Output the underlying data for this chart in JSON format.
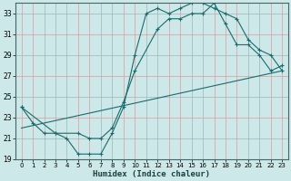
{
  "xlabel": "Humidex (Indice chaleur)",
  "bg_color": "#cde8e8",
  "grid_color": "#b0c8c8",
  "line_color": "#1a6b6b",
  "xlim": [
    -0.5,
    23.5
  ],
  "ylim": [
    19,
    34
  ],
  "xticks": [
    0,
    1,
    2,
    3,
    4,
    5,
    6,
    7,
    8,
    9,
    10,
    11,
    12,
    13,
    14,
    15,
    16,
    17,
    18,
    19,
    20,
    21,
    22,
    23
  ],
  "yticks": [
    19,
    21,
    23,
    25,
    27,
    29,
    31,
    33
  ],
  "curve1_x": [
    0,
    1,
    2,
    3,
    4,
    5,
    6,
    7,
    8,
    9,
    10,
    11,
    12,
    13,
    14,
    15,
    16,
    17,
    18,
    19,
    20,
    21,
    22,
    23
  ],
  "curve1_y": [
    24.0,
    22.5,
    21.5,
    21.5,
    21.0,
    19.5,
    19.5,
    19.5,
    21.5,
    24.0,
    29.0,
    33.0,
    33.5,
    33.0,
    33.5,
    34.0,
    34.0,
    33.5,
    33.0,
    32.5,
    30.5,
    29.5,
    29.0,
    27.5
  ],
  "curve2_x": [
    0,
    3,
    5,
    6,
    7,
    8,
    9,
    10,
    12,
    13,
    14,
    15,
    16,
    17,
    18,
    19,
    20,
    21,
    22,
    23
  ],
  "curve2_y": [
    24.0,
    21.5,
    21.5,
    21.0,
    21.0,
    22.0,
    24.5,
    27.5,
    31.5,
    32.5,
    32.5,
    33.0,
    33.0,
    34.0,
    32.0,
    30.0,
    30.0,
    29.0,
    27.5,
    28.0
  ],
  "line3_x": [
    0,
    23
  ],
  "line3_y": [
    22.0,
    27.5
  ]
}
